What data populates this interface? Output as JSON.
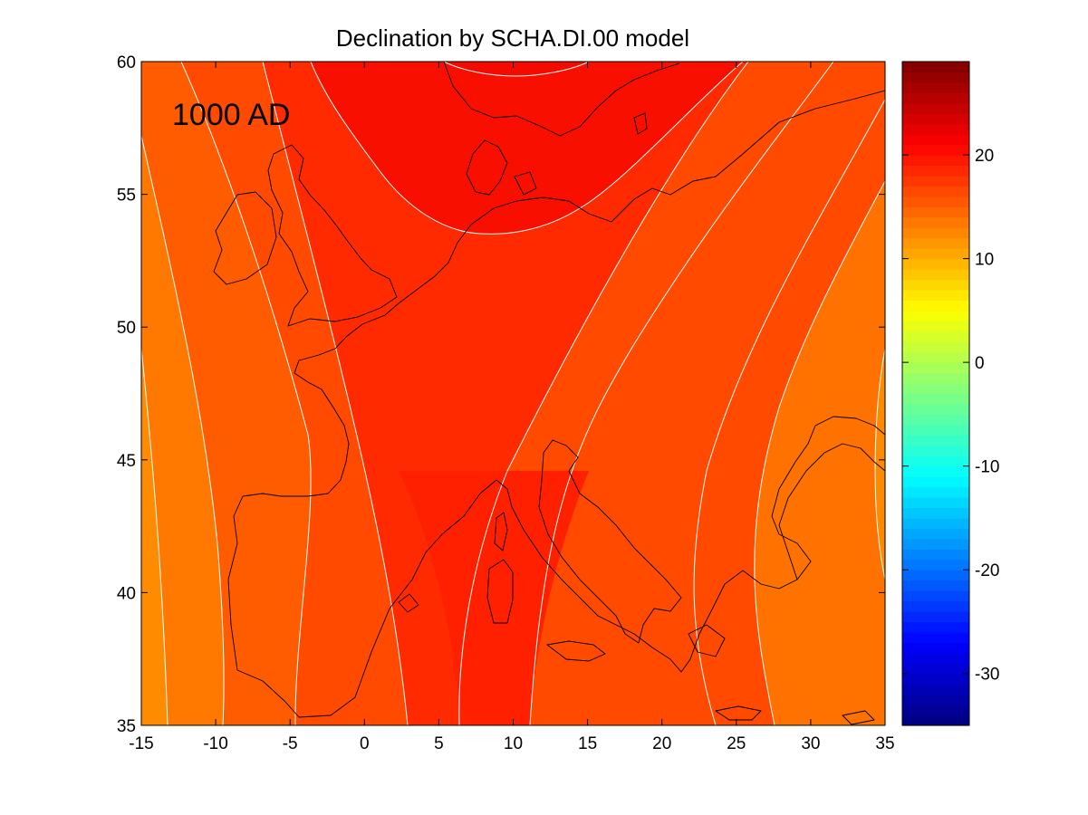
{
  "chart_data": {
    "type": "heatmap",
    "title": "Declination by SCHA.DI.00 model",
    "annotation": "1000 AD",
    "xlim": [
      -15,
      35
    ],
    "ylim": [
      35,
      60
    ],
    "x_ticks": [
      -15,
      -10,
      -5,
      0,
      5,
      10,
      15,
      20,
      25,
      30,
      35
    ],
    "y_ticks": [
      35,
      40,
      45,
      50,
      55,
      60
    ],
    "colorbar": {
      "colormap": "jet",
      "clim": [
        -35,
        29
      ],
      "ticks": [
        -30,
        -20,
        -10,
        0,
        10,
        20
      ]
    },
    "contour_levels": [
      11,
      13,
      15,
      17,
      19,
      21
    ],
    "grid": false,
    "legend": "none",
    "overlay": "coastlines"
  }
}
